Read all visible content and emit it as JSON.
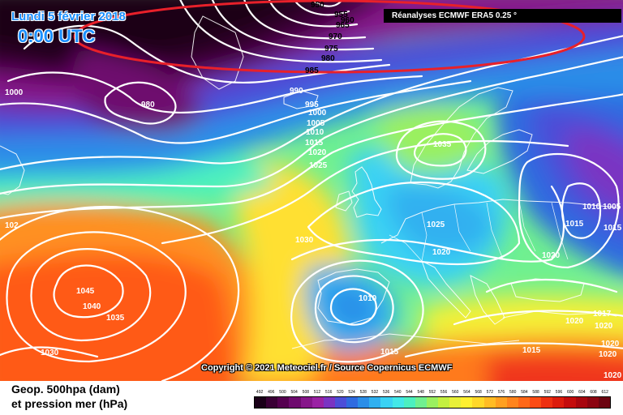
{
  "header": {
    "date": "Lundi 5 février 2018",
    "time": "0:00 UTC",
    "source": "Réanalyses ECMWF ERA5 0.25 °"
  },
  "copyright": "Copyright © 2021 Meteociel.fr / Source Copernicus ECMWF",
  "legend": {
    "line1": "Geop. 500hpa (dam)",
    "line2": "et pression mer (hPa)",
    "scale_values": [
      "492",
      "496",
      "500",
      "504",
      "508",
      "512",
      "516",
      "520",
      "524",
      "528",
      "532",
      "536",
      "540",
      "544",
      "548",
      "552",
      "556",
      "560",
      "564",
      "568",
      "572",
      "576",
      "580",
      "584",
      "588",
      "592",
      "596",
      "600",
      "604",
      "608",
      "612"
    ],
    "scale_colors": [
      "#1a0018",
      "#3a0035",
      "#55004f",
      "#6e0a6e",
      "#86168a",
      "#9a22a4",
      "#7a34c2",
      "#4c4ed8",
      "#2f6be0",
      "#2b8ee8",
      "#30b0f0",
      "#3ad2f4",
      "#43e8e8",
      "#4cf0c0",
      "#70f090",
      "#9af060",
      "#c4f040",
      "#e8f038",
      "#fff030",
      "#ffd828",
      "#ffbc24",
      "#ffa020",
      "#ff841c",
      "#ff6818",
      "#fc4c14",
      "#ee3010",
      "#dc1c0c",
      "#c40c0c",
      "#a8060e",
      "#8c0410",
      "#6c0410"
    ]
  },
  "colors": {
    "highlight_ellipse": "#e8202a",
    "isobar": "#ffffff",
    "coastline": "#ffffff"
  },
  "isobar_labels": [
    {
      "id": "950",
      "text": "950"
    },
    {
      "id": "955",
      "text": "955"
    },
    {
      "id": "960",
      "text": "960"
    },
    {
      "id": "965",
      "text": "965"
    },
    {
      "id": "970",
      "text": "970"
    },
    {
      "id": "975",
      "text": "975"
    },
    {
      "id": "980a",
      "text": "980"
    },
    {
      "id": "985",
      "text": "985"
    },
    {
      "id": "990",
      "text": "990"
    },
    {
      "id": "995",
      "text": "995"
    },
    {
      "id": "1000b",
      "text": "1000"
    },
    {
      "id": "1005",
      "text": "1005"
    },
    {
      "id": "1010a",
      "text": "1010"
    },
    {
      "id": "1015a",
      "text": "1015"
    },
    {
      "id": "1020a",
      "text": "1020"
    },
    {
      "id": "1025a",
      "text": "1025"
    },
    {
      "id": "1000a",
      "text": "1000"
    },
    {
      "id": "980b",
      "text": "980"
    },
    {
      "id": "1035a",
      "text": "1035"
    },
    {
      "id": "1025b",
      "text": "1025"
    },
    {
      "id": "1020b",
      "text": "1020"
    },
    {
      "id": "1030",
      "text": "1030"
    },
    {
      "id": "1045",
      "text": "1045"
    },
    {
      "id": "1040",
      "text": "1040"
    },
    {
      "id": "1035b",
      "text": "1035"
    },
    {
      "id": "1030b",
      "text": "1030"
    },
    {
      "id": "102",
      "text": "102"
    },
    {
      "id": "1010b",
      "text": "1010"
    },
    {
      "id": "1015b",
      "text": "1015"
    },
    {
      "id": "1015c",
      "text": "1015"
    },
    {
      "id": "1015d",
      "text": "1015"
    },
    {
      "id": "1020c",
      "text": "1020"
    },
    {
      "id": "1010c",
      "text": "1010"
    },
    {
      "id": "1005b",
      "text": "1005"
    },
    {
      "id": "1015e",
      "text": "1015"
    },
    {
      "id": "1020d",
      "text": "1020"
    },
    {
      "id": "1017",
      "text": "1017"
    },
    {
      "id": "1020e",
      "text": "1020"
    },
    {
      "id": "1020f",
      "text": "1020"
    },
    {
      "id": "1020g",
      "text": "1020"
    },
    {
      "id": "1020h",
      "text": "1020"
    }
  ]
}
